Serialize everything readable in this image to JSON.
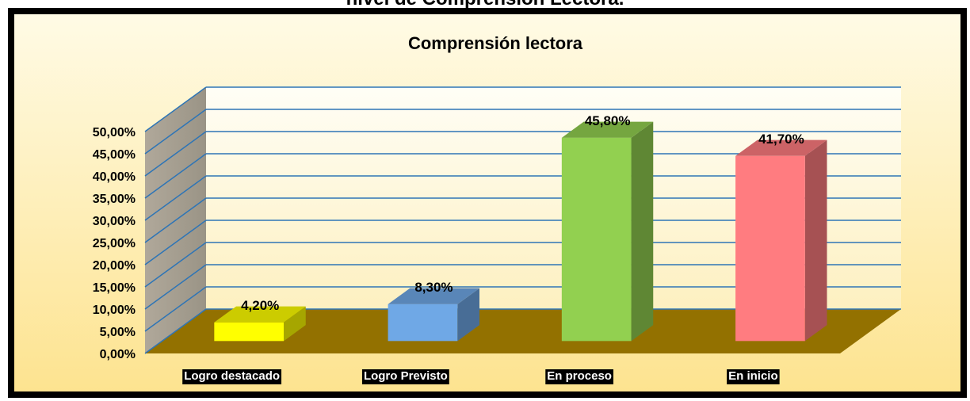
{
  "chart_data": {
    "type": "bar3d",
    "caption": "nivel de Comprensión Lectora.",
    "title": "Comprensión lectora",
    "categories": [
      "Logro destacado",
      "Logro Previsto",
      "En proceso",
      "En inicio"
    ],
    "values": [
      4.2,
      8.3,
      45.8,
      41.7
    ],
    "value_labels": [
      "4,20%",
      "8,30%",
      "45,80%",
      "41,70%"
    ],
    "colors": [
      "#ffff00",
      "#6fa8e6",
      "#92d050",
      "#ff7c80"
    ],
    "ylim": [
      0,
      50
    ],
    "yticks": [
      {
        "value": 0,
        "label": "0,00%"
      },
      {
        "value": 5,
        "label": "5,00%"
      },
      {
        "value": 10,
        "label": "10,00%"
      },
      {
        "value": 15,
        "label": "15,00%"
      },
      {
        "value": 20,
        "label": "20,00%"
      },
      {
        "value": 25,
        "label": "25,00%"
      },
      {
        "value": 30,
        "label": "30,00%"
      },
      {
        "value": 35,
        "label": "35,00%"
      },
      {
        "value": 40,
        "label": "40,00%"
      },
      {
        "value": 45,
        "label": "45,00%"
      },
      {
        "value": 50,
        "label": "50,00%"
      }
    ],
    "grid": true
  }
}
